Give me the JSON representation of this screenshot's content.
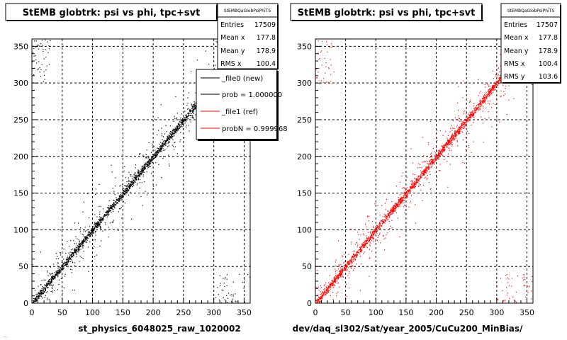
{
  "footer": "...",
  "chart_data": [
    {
      "type": "scatter",
      "title": "StEMB globtrk: psi vs phi, tpc+svt",
      "xlabel": "st_physics_6048025_raw_1020002",
      "ylabel": "",
      "xlim": [
        0,
        360
      ],
      "ylim": [
        0,
        360
      ],
      "xticks": [
        0,
        50,
        100,
        150,
        200,
        250,
        300,
        350
      ],
      "yticks": [
        0,
        50,
        100,
        150,
        200,
        250,
        300,
        350
      ],
      "grid": true,
      "color": "#000000",
      "x": [
        0,
        50,
        100,
        150,
        200,
        250,
        300,
        350
      ],
      "y": [
        0,
        50,
        100,
        150,
        200,
        250,
        300,
        350
      ],
      "stats": {
        "name": "StEMBQaGlobPsiPhiTS",
        "rows": [
          {
            "label": "Entries",
            "value": "17509"
          },
          {
            "label": "Mean x",
            "value": "177.8"
          },
          {
            "label": "Mean y",
            "value": "178.9"
          },
          {
            "label": "RMS x",
            "value": "100.4"
          }
        ]
      },
      "legend": {
        "placement": "top-right",
        "entries": [
          {
            "label": "_file0 (new)",
            "color": "#000000"
          },
          {
            "label": "prob = 1.000000",
            "color": "#000000"
          },
          {
            "label": "_file1 (ref)",
            "color": "#ff0000"
          },
          {
            "label": "probN = 0.999968",
            "color": "#ff0000"
          }
        ]
      }
    },
    {
      "type": "scatter",
      "title": "StEMB globtrk: psi vs phi, tpc+svt",
      "xlabel": "dev/daq_sl302/Sat/year_2005/CuCu200_MinBias/",
      "ylabel": "",
      "xlim": [
        0,
        360
      ],
      "ylim": [
        0,
        360
      ],
      "xticks": [
        0,
        50,
        100,
        150,
        200,
        250,
        300,
        350
      ],
      "yticks": [
        0,
        50,
        100,
        150,
        200,
        250,
        300,
        350
      ],
      "grid": true,
      "color": "#ff0000",
      "x": [
        0,
        50,
        100,
        150,
        200,
        250,
        300,
        350
      ],
      "y": [
        0,
        50,
        100,
        150,
        200,
        250,
        300,
        350
      ],
      "stats": {
        "name": "StEMBQaGlobPsiPhiTS",
        "rows": [
          {
            "label": "Entries",
            "value": "17507"
          },
          {
            "label": "Mean x",
            "value": "177.8"
          },
          {
            "label": "Mean y",
            "value": "178.9"
          },
          {
            "label": "RMS x",
            "value": "100.4"
          },
          {
            "label": "RMS y",
            "value": "103.6"
          }
        ]
      }
    }
  ]
}
